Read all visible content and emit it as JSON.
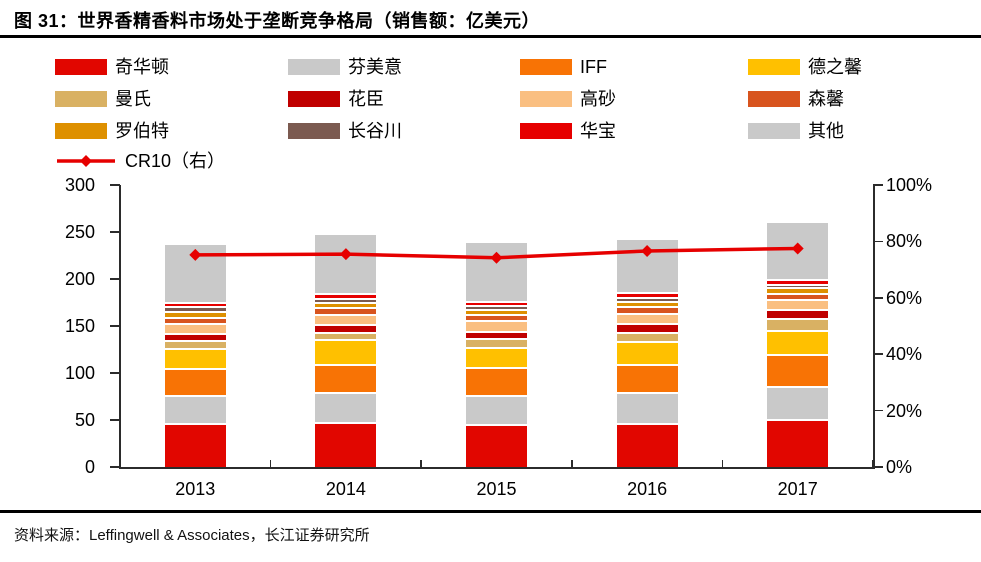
{
  "title": "图 31：世界香精香料市场处于垄断竞争格局（销售额：亿美元）",
  "source": "资料来源：Leffingwell & Associates，长江证券研究所",
  "colors": {
    "accent_red": "#e60000",
    "axis": "#2b2b2b"
  },
  "chart_data": {
    "type": "bar",
    "stacked": true,
    "grid": false,
    "legend_position": "top",
    "categories": [
      "2013",
      "2014",
      "2015",
      "2016",
      "2017"
    ],
    "series": [
      {
        "name": "奇华顿",
        "color": "#e10600",
        "values": [
          47,
          48,
          46,
          47,
          51
        ]
      },
      {
        "name": "芬美意",
        "color": "#c9c9c9",
        "values": [
          30,
          32,
          31,
          33,
          35
        ]
      },
      {
        "name": "IFF",
        "color": "#f87305",
        "values": [
          28,
          30,
          29,
          29,
          34
        ]
      },
      {
        "name": "德之馨",
        "color": "#ffc000",
        "values": [
          21,
          26,
          22,
          25,
          26
        ]
      },
      {
        "name": "曼氏",
        "color": "#d9b163",
        "values": [
          9,
          8,
          9,
          10,
          12
        ]
      },
      {
        "name": "花臣",
        "color": "#c00000",
        "values": [
          7,
          8,
          8,
          9,
          10
        ]
      },
      {
        "name": "高砂",
        "color": "#fabf81",
        "values": [
          11,
          11,
          11,
          11,
          11
        ]
      },
      {
        "name": "森馨",
        "color": "#d8541e",
        "values": [
          7,
          7,
          7,
          7,
          6
        ]
      },
      {
        "name": "罗伯特",
        "color": "#de9000",
        "values": [
          6,
          5,
          5,
          6,
          6
        ]
      },
      {
        "name": "长谷川",
        "color": "#7b5a50",
        "values": [
          5,
          5,
          4,
          4,
          4
        ]
      },
      {
        "name": "华宝",
        "color": "#e60000",
        "values": [
          5,
          5,
          5,
          5,
          5
        ]
      },
      {
        "name": "其他",
        "color": "#c9c9c9",
        "values": [
          62,
          64,
          63,
          58,
          62
        ]
      }
    ],
    "bar_totals": [
      238,
      249,
      240,
      244,
      262
    ],
    "line_series": {
      "name": "CR10（右）",
      "color": "#e60000",
      "axis": "right",
      "values": [
        75.2,
        75.5,
        74.2,
        76.6,
        77.5
      ]
    },
    "left_axis": {
      "min": 0,
      "max": 300,
      "step": 50,
      "ticks": [
        "0",
        "50",
        "100",
        "150",
        "200",
        "250",
        "300"
      ]
    },
    "right_axis": {
      "min": 0,
      "max": 100,
      "step": 20,
      "ticks": [
        "0%",
        "20%",
        "40%",
        "60%",
        "80%",
        "100%"
      ]
    }
  }
}
